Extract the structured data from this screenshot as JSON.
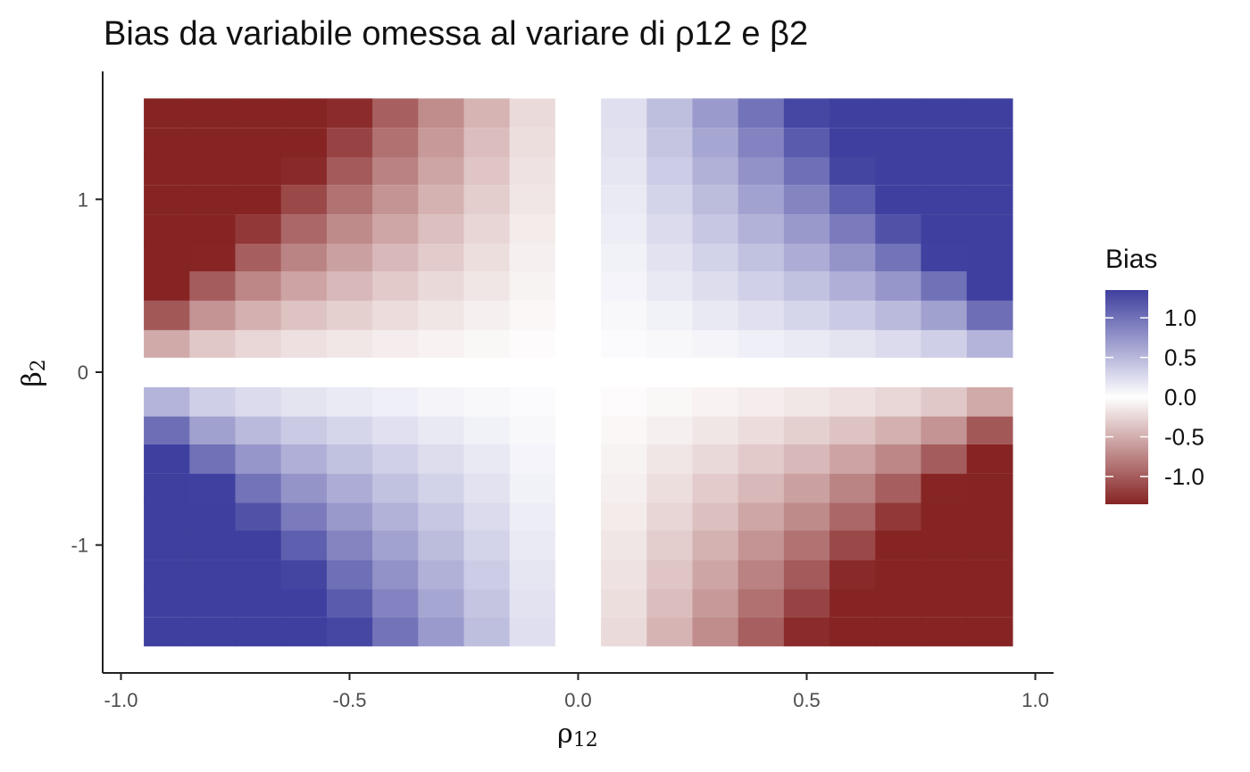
{
  "chart_data": {
    "type": "heatmap",
    "title": "Bias da variabile omessa al variare di ρ12 e β2",
    "xlabel": {
      "base": "ρ",
      "sub": "12"
    },
    "ylabel": {
      "base": "β",
      "sub": "2"
    },
    "x_ticks": [
      "-1.0",
      "-0.5",
      "0.0",
      "0.5",
      "1.0"
    ],
    "x_tick_values": [
      -1.0,
      -0.5,
      0.0,
      0.5,
      1.0
    ],
    "y_ticks": [
      "-1",
      "0",
      "1"
    ],
    "y_tick_values": [
      -1,
      0,
      1
    ],
    "xlim": [
      -1.04,
      1.04
    ],
    "ylim": [
      -1.74,
      1.74
    ],
    "x": [
      -0.9,
      -0.8,
      -0.7,
      -0.6,
      -0.5,
      -0.4,
      -0.3,
      -0.2,
      -0.1,
      0.0,
      0.1,
      0.2,
      0.3,
      0.4,
      0.5,
      0.6,
      0.7,
      0.8,
      0.9
    ],
    "y": [
      -1.5,
      -1.33,
      -1.17,
      -1.0,
      -0.83,
      -0.67,
      -0.5,
      -0.33,
      -0.17,
      0.0,
      0.17,
      0.33,
      0.5,
      0.67,
      0.83,
      1.0,
      1.17,
      1.33,
      1.5
    ],
    "cell_size": {
      "x": 0.1,
      "y": 0.167
    },
    "value_rule": "bias = rho12 * beta2 * 1.5 / sqrt(1 - rho12^2)",
    "value_scale": 1.5,
    "legend": {
      "title": "Bias",
      "labels": [
        "1.0",
        "0.5",
        "0.0",
        "-0.5",
        "-1.0"
      ],
      "values": [
        1.0,
        0.5,
        0.0,
        -0.5,
        -1.0
      ],
      "limits": [
        -1.35,
        1.35
      ],
      "placement": "right"
    },
    "colors": {
      "high": "#3f3f9f",
      "mid": "#ffffff",
      "low": "#862323"
    },
    "grid": false
  }
}
